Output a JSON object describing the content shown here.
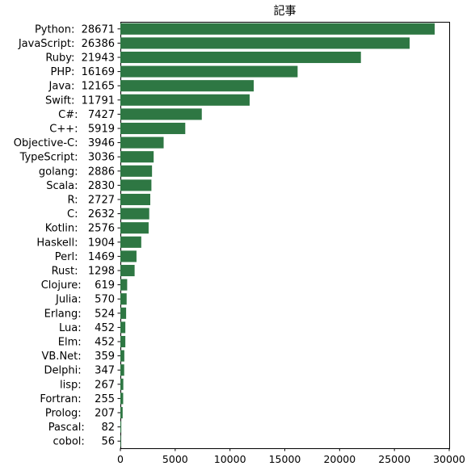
{
  "chart_data": {
    "type": "bar",
    "orientation": "horizontal",
    "title": "記事",
    "bar_color": "#2e7743",
    "categories": [
      "Python",
      "JavaScript",
      "Ruby",
      "PHP",
      "Java",
      "Swift",
      "C#",
      "C++",
      "Objective-C",
      "TypeScript",
      "golang",
      "Scala",
      "R",
      "C",
      "Kotlin",
      "Haskell",
      "Perl",
      "Rust",
      "Clojure",
      "Julia",
      "Erlang",
      "Lua",
      "Elm",
      "VB.Net",
      "Delphi",
      "lisp",
      "Fortran",
      "Prolog",
      "Pascal",
      "cobol"
    ],
    "values": [
      28671,
      26386,
      21943,
      16169,
      12165,
      11791,
      7427,
      5919,
      3946,
      3036,
      2886,
      2830,
      2727,
      2632,
      2576,
      1904,
      1469,
      1298,
      619,
      570,
      524,
      452,
      452,
      359,
      347,
      267,
      255,
      207,
      82,
      56
    ],
    "row_labels": [
      "Python:  28671",
      "JavaScript:  26386",
      "Ruby:  21943",
      "PHP:  16169",
      "Java:  12165",
      "Swift:  11791",
      "C#:   7427",
      "C++:   5919",
      "Objective-C:   3946",
      "TypeScript:   3036",
      "golang:   2886",
      "Scala:   2830",
      "R:   2727",
      "C:   2632",
      "Kotlin:   2576",
      "Haskell:   1904",
      "Perl:   1469",
      "Rust:   1298",
      "Clojure:    619",
      "Julia:    570",
      "Erlang:    524",
      "Lua:    452",
      "Elm:    452",
      "VB.Net:    359",
      "Delphi:    347",
      "lisp:    267",
      "Fortran:    255",
      "Prolog:    207",
      "Pascal:     82",
      "cobol:     56"
    ],
    "xlim": [
      0,
      30000
    ],
    "xticks": [
      0,
      5000,
      10000,
      15000,
      20000,
      25000,
      30000
    ],
    "xlabel": "",
    "ylabel": "",
    "grid": false,
    "legend": "none"
  }
}
